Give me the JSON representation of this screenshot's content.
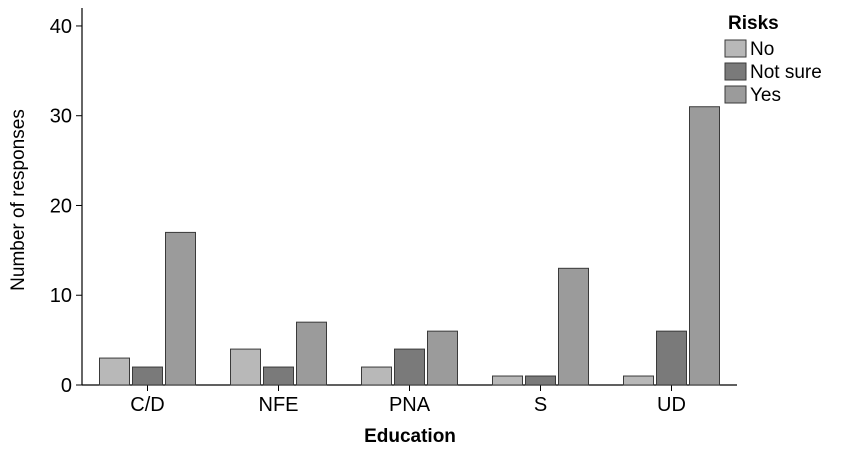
{
  "chart_data": {
    "type": "bar",
    "xlabel": "Education",
    "ylabel": "Number of responses",
    "ylim": [
      0,
      42
    ],
    "yticks": [
      0,
      10,
      20,
      30,
      40
    ],
    "categories": [
      "C/D",
      "NFE",
      "PNA",
      "S",
      "UD"
    ],
    "legend_title": "Risks",
    "legend_position": "top-right",
    "grid": false,
    "series": [
      {
        "name": "No",
        "color": "#b8b8b8",
        "values": [
          3,
          4,
          2,
          1,
          1
        ]
      },
      {
        "name": "Not sure",
        "color": "#7a7a7a",
        "values": [
          2,
          2,
          4,
          1,
          6
        ]
      },
      {
        "name": "Yes",
        "color": "#9b9b9b",
        "values": [
          17,
          7,
          6,
          13,
          31
        ]
      }
    ]
  }
}
